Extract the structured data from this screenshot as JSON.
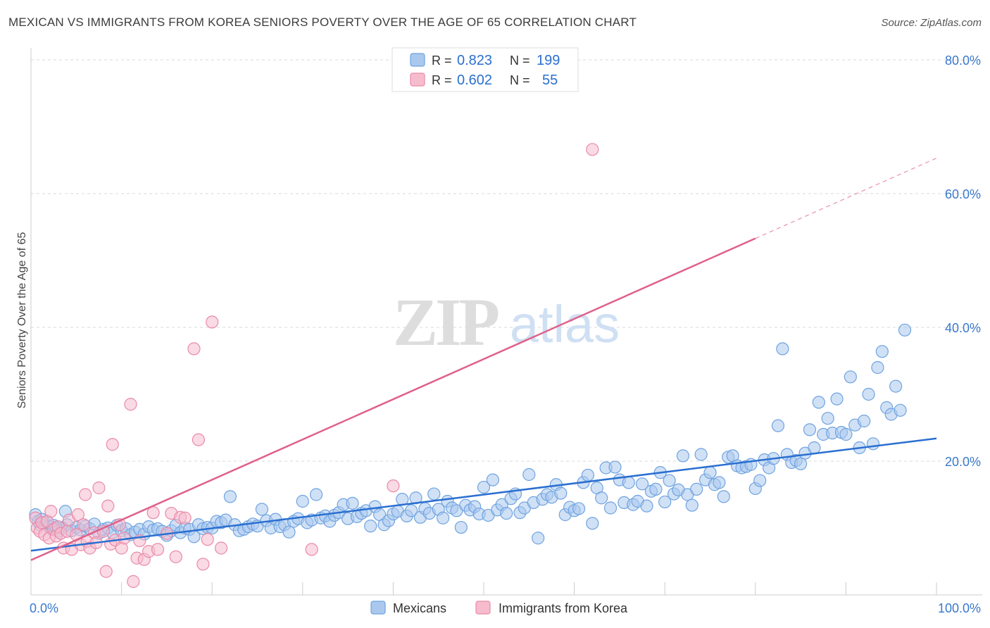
{
  "chart_data": {
    "type": "scatter",
    "title": "MEXICAN VS IMMIGRANTS FROM KOREA SENIORS POVERTY OVER THE AGE OF 65 CORRELATION CHART",
    "source": "Source: ZipAtlas.com",
    "ylabel": "Seniors Poverty Over the Age of 65",
    "xlabel": "",
    "xlim": [
      0,
      100
    ],
    "ylim": [
      0,
      80
    ],
    "x_tick_labels": [
      "0.0%",
      "100.0%"
    ],
    "y_ticks": [
      20,
      40,
      60,
      80
    ],
    "y_tick_labels": [
      "20.0%",
      "40.0%",
      "60.0%",
      "80.0%"
    ],
    "watermark": {
      "zip": "ZIP",
      "atlas": "atlas"
    },
    "legend_stats": [
      {
        "r_label": "R =",
        "r_value": "0.823",
        "n_label": "N =",
        "n_value": "199"
      },
      {
        "r_label": "R =",
        "r_value": "0.602",
        "n_label": "N =",
        "n_value": "55"
      }
    ],
    "series": [
      {
        "name": "Mexicans",
        "color": "#6fa3e0",
        "fill": "#aac8ee",
        "line_color": "#2a6fd0",
        "trend": {
          "x0": 0,
          "y0": 6.6,
          "x1": 100,
          "y1": 23.4
        },
        "points": [
          [
            0.5,
            12
          ],
          [
            0.8,
            11
          ],
          [
            1,
            10.5
          ],
          [
            1.2,
            11.3
          ],
          [
            1.5,
            10.8
          ],
          [
            1.8,
            11
          ],
          [
            2,
            10.2
          ],
          [
            2.3,
            9.8
          ],
          [
            2.5,
            10.4
          ],
          [
            2.8,
            10
          ],
          [
            3,
            9.5
          ],
          [
            3.5,
            10
          ],
          [
            3.8,
            12.5
          ],
          [
            4,
            10.5
          ],
          [
            4.5,
            9.6
          ],
          [
            5,
            10.1
          ],
          [
            5.5,
            9.7
          ],
          [
            6,
            10.3
          ],
          [
            6.5,
            9.9
          ],
          [
            7,
            10.6
          ],
          [
            7.5,
            9.2
          ],
          [
            8,
            9.8
          ],
          [
            8.5,
            10
          ],
          [
            9,
            9.3
          ],
          [
            9.5,
            10.4
          ],
          [
            10,
            9.6
          ],
          [
            10.5,
            9.9
          ],
          [
            11,
            9
          ],
          [
            11.5,
            9.4
          ],
          [
            12,
            9.8
          ],
          [
            12.5,
            9.1
          ],
          [
            13,
            10.2
          ],
          [
            13.5,
            9.7
          ],
          [
            14,
            9.9
          ],
          [
            14.5,
            9.5
          ],
          [
            15,
            8.9
          ],
          [
            15.5,
            9.6
          ],
          [
            16,
            10.4
          ],
          [
            16.5,
            9.3
          ],
          [
            17,
            10
          ],
          [
            17.5,
            9.8
          ],
          [
            18,
            8.7
          ],
          [
            18.5,
            10.5
          ],
          [
            19,
            9.9
          ],
          [
            19.5,
            10.1
          ],
          [
            20,
            10
          ],
          [
            20.5,
            11
          ],
          [
            21,
            10.8
          ],
          [
            21.5,
            11.2
          ],
          [
            22,
            14.7
          ],
          [
            22.5,
            10.5
          ],
          [
            23,
            9.6
          ],
          [
            23.5,
            9.8
          ],
          [
            24,
            10.2
          ],
          [
            24.5,
            10.6
          ],
          [
            25,
            10.3
          ],
          [
            25.5,
            12.8
          ],
          [
            26,
            11.1
          ],
          [
            26.5,
            10
          ],
          [
            27,
            11.3
          ],
          [
            27.5,
            10.2
          ],
          [
            28,
            10.5
          ],
          [
            28.5,
            9.4
          ],
          [
            29,
            11
          ],
          [
            29.5,
            11.4
          ],
          [
            30,
            14
          ],
          [
            30.5,
            10.8
          ],
          [
            31,
            11.2
          ],
          [
            31.5,
            15
          ],
          [
            32,
            11.5
          ],
          [
            32.5,
            11.8
          ],
          [
            33,
            11
          ],
          [
            33.5,
            11.9
          ],
          [
            34,
            12.3
          ],
          [
            34.5,
            13.5
          ],
          [
            35,
            11.4
          ],
          [
            35.5,
            13.7
          ],
          [
            36,
            11.7
          ],
          [
            36.5,
            12.2
          ],
          [
            37,
            12.6
          ],
          [
            37.5,
            10.3
          ],
          [
            38,
            13.2
          ],
          [
            38.5,
            12
          ],
          [
            39,
            10.5
          ],
          [
            39.5,
            11.1
          ],
          [
            40,
            12.1
          ],
          [
            40.5,
            12.5
          ],
          [
            41,
            14.3
          ],
          [
            41.5,
            11.8
          ],
          [
            42,
            12.6
          ],
          [
            42.5,
            14.5
          ],
          [
            43,
            11.6
          ],
          [
            43.5,
            12.9
          ],
          [
            44,
            12.2
          ],
          [
            44.5,
            15.1
          ],
          [
            45,
            12.8
          ],
          [
            45.5,
            11.5
          ],
          [
            46,
            14
          ],
          [
            46.5,
            13
          ],
          [
            47,
            12.6
          ],
          [
            47.5,
            10.1
          ],
          [
            48,
            13.4
          ],
          [
            48.5,
            12.7
          ],
          [
            49,
            13.2
          ],
          [
            49.5,
            12.1
          ],
          [
            50,
            16.1
          ],
          [
            50.5,
            11.9
          ],
          [
            51,
            17.2
          ],
          [
            51.5,
            12.7
          ],
          [
            52,
            13.5
          ],
          [
            52.5,
            12.2
          ],
          [
            53,
            14.4
          ],
          [
            53.5,
            15.1
          ],
          [
            54,
            12.3
          ],
          [
            54.5,
            13
          ],
          [
            55,
            18
          ],
          [
            55.5,
            13.8
          ],
          [
            56,
            8.5
          ],
          [
            56.5,
            14.3
          ],
          [
            57,
            15
          ],
          [
            57.5,
            14.6
          ],
          [
            58,
            16.5
          ],
          [
            58.5,
            15.2
          ],
          [
            59,
            12
          ],
          [
            59.5,
            13.1
          ],
          [
            60,
            12.6
          ],
          [
            60.5,
            12.9
          ],
          [
            61,
            16.8
          ],
          [
            61.5,
            17.9
          ],
          [
            62,
            10.7
          ],
          [
            62.5,
            16
          ],
          [
            63,
            14.5
          ],
          [
            63.5,
            19
          ],
          [
            64,
            13
          ],
          [
            64.5,
            19.1
          ],
          [
            65,
            17.2
          ],
          [
            65.5,
            13.8
          ],
          [
            66,
            16.8
          ],
          [
            66.5,
            13.5
          ],
          [
            67,
            14
          ],
          [
            67.5,
            16.6
          ],
          [
            68,
            13.3
          ],
          [
            68.5,
            15.5
          ],
          [
            69,
            15.8
          ],
          [
            69.5,
            18.3
          ],
          [
            70,
            13.9
          ],
          [
            70.5,
            17.1
          ],
          [
            71,
            15.1
          ],
          [
            71.5,
            15.7
          ],
          [
            72,
            20.8
          ],
          [
            72.5,
            15
          ],
          [
            73,
            13.4
          ],
          [
            73.5,
            15.8
          ],
          [
            74,
            21
          ],
          [
            74.5,
            17.2
          ],
          [
            75,
            18.3
          ],
          [
            75.5,
            16.5
          ],
          [
            76,
            16.8
          ],
          [
            76.5,
            14.7
          ],
          [
            77,
            20.6
          ],
          [
            77.5,
            20.8
          ],
          [
            78,
            19.3
          ],
          [
            78.5,
            19
          ],
          [
            79,
            19.2
          ],
          [
            79.5,
            19.5
          ],
          [
            80,
            15.9
          ],
          [
            80.5,
            17.1
          ],
          [
            81,
            20.2
          ],
          [
            81.5,
            19
          ],
          [
            82,
            20.4
          ],
          [
            82.5,
            25.3
          ],
          [
            83,
            36.8
          ],
          [
            83.5,
            21
          ],
          [
            84,
            19.8
          ],
          [
            84.5,
            20.1
          ],
          [
            85,
            19.6
          ],
          [
            85.5,
            21.2
          ],
          [
            86,
            24.7
          ],
          [
            86.5,
            22
          ],
          [
            87,
            28.8
          ],
          [
            87.5,
            24
          ],
          [
            88,
            26.4
          ],
          [
            88.5,
            24.2
          ],
          [
            89,
            29.3
          ],
          [
            89.5,
            24.3
          ],
          [
            90,
            24
          ],
          [
            90.5,
            32.6
          ],
          [
            91,
            25.4
          ],
          [
            91.5,
            22
          ],
          [
            92,
            26
          ],
          [
            92.5,
            30
          ],
          [
            93,
            22.6
          ],
          [
            93.5,
            34
          ],
          [
            94,
            36.4
          ],
          [
            94.5,
            28
          ],
          [
            95,
            27
          ],
          [
            95.5,
            31.2
          ],
          [
            96,
            27.6
          ],
          [
            96.5,
            39.6
          ]
        ]
      },
      {
        "name": "Immigrants from Korea",
        "color": "#e98aa8",
        "fill": "#f6bccd",
        "line_color": "#e0608a",
        "trend": {
          "x0": 0,
          "y0": 5.2,
          "x1": 80,
          "y1": 53.3
        },
        "trend_dash": {
          "x0": 80,
          "y0": 53.3,
          "x1": 100,
          "y1": 65.3
        },
        "points": [
          [
            0.5,
            11.5
          ],
          [
            0.7,
            10
          ],
          [
            1,
            9.5
          ],
          [
            1.2,
            10.8
          ],
          [
            1.5,
            9
          ],
          [
            1.8,
            11
          ],
          [
            2,
            8.5
          ],
          [
            2.2,
            12.5
          ],
          [
            2.5,
            9.8
          ],
          [
            2.8,
            8.8
          ],
          [
            3,
            10.2
          ],
          [
            3.3,
            9.2
          ],
          [
            3.6,
            7
          ],
          [
            4,
            9.5
          ],
          [
            4.2,
            11.2
          ],
          [
            4.5,
            6.8
          ],
          [
            5,
            9
          ],
          [
            5.2,
            12
          ],
          [
            5.5,
            7.5
          ],
          [
            5.8,
            10.5
          ],
          [
            6,
            15
          ],
          [
            6.2,
            8
          ],
          [
            6.5,
            7
          ],
          [
            7,
            9.3
          ],
          [
            7.2,
            7.8
          ],
          [
            7.5,
            16
          ],
          [
            8,
            9.5
          ],
          [
            8.3,
            3.5
          ],
          [
            8.5,
            13.3
          ],
          [
            8.8,
            7.6
          ],
          [
            9,
            22.5
          ],
          [
            9.3,
            8.2
          ],
          [
            9.8,
            10.5
          ],
          [
            10,
            7
          ],
          [
            10.3,
            8.5
          ],
          [
            11,
            28.5
          ],
          [
            11.3,
            2
          ],
          [
            11.7,
            5.5
          ],
          [
            12,
            8.1
          ],
          [
            12.5,
            5.3
          ],
          [
            13,
            6.5
          ],
          [
            13.5,
            12.3
          ],
          [
            14,
            6.8
          ],
          [
            15,
            9.2
          ],
          [
            15.5,
            12.2
          ],
          [
            16,
            5.7
          ],
          [
            16.5,
            11.6
          ],
          [
            17,
            11.5
          ],
          [
            18,
            36.8
          ],
          [
            18.5,
            23.2
          ],
          [
            19,
            4.6
          ],
          [
            19.5,
            8.3
          ],
          [
            20,
            40.8
          ],
          [
            21,
            7
          ],
          [
            31,
            6.8
          ],
          [
            40,
            16.3
          ],
          [
            62,
            66.6
          ]
        ]
      }
    ]
  }
}
